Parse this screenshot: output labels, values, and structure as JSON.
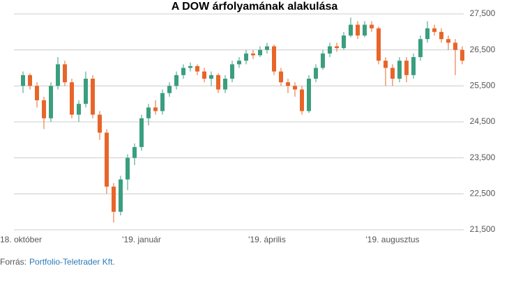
{
  "chart_data": {
    "type": "candlestick",
    "title": "A DOW árfolyamának alakulása",
    "categories": [
      "18. október",
      null,
      null,
      null,
      null,
      null,
      null,
      null,
      null,
      null,
      null,
      null,
      null,
      null,
      null,
      null,
      null,
      "'19. január",
      null,
      null,
      null,
      null,
      null,
      null,
      null,
      null,
      null,
      null,
      null,
      null,
      null,
      null,
      null,
      null,
      null,
      "'19. április",
      null,
      null,
      null,
      null,
      null,
      null,
      null,
      null,
      null,
      null,
      null,
      null,
      null,
      null,
      null,
      null,
      null,
      "'19. augusztus",
      null,
      null,
      null,
      null,
      null,
      null,
      null,
      null,
      null,
      null
    ],
    "open": [
      25500,
      25800,
      25500,
      25100,
      24600,
      25500,
      26100,
      25600,
      24700,
      25000,
      25700,
      24700,
      24200,
      22700,
      22000,
      22900,
      23500,
      23800,
      24600,
      24900,
      24800,
      25300,
      25500,
      25800,
      26000,
      26050,
      25900,
      25700,
      25800,
      25400,
      25700,
      26100,
      26200,
      26400,
      26350,
      26500,
      26600,
      25900,
      25600,
      25500,
      25400,
      24800,
      25700,
      26000,
      26400,
      26600,
      26550,
      26900,
      27200,
      26900,
      27200,
      27100,
      26200,
      26000,
      25700,
      26200,
      25800,
      26300,
      26800,
      27100,
      27000,
      26800,
      26700,
      26500
    ],
    "high": [
      25900,
      25850,
      25600,
      25200,
      25600,
      26300,
      26200,
      25700,
      25100,
      25900,
      25800,
      24800,
      24300,
      22800,
      23000,
      23600,
      23900,
      24700,
      25000,
      25100,
      25400,
      25600,
      25900,
      26100,
      26150,
      26100,
      26000,
      25900,
      25850,
      25800,
      26200,
      26300,
      26500,
      26500,
      26600,
      26700,
      26650,
      26000,
      25700,
      25600,
      25500,
      25800,
      26100,
      26500,
      26700,
      26700,
      27000,
      27400,
      27300,
      27300,
      27300,
      27150,
      26300,
      26100,
      26300,
      26300,
      26400,
      26900,
      27300,
      27200,
      27100,
      26900,
      26800,
      26600
    ],
    "low": [
      25300,
      25400,
      24900,
      24300,
      24500,
      25400,
      25500,
      24600,
      24500,
      24900,
      24600,
      24000,
      22500,
      21700,
      21900,
      22600,
      23300,
      23700,
      24400,
      24700,
      24700,
      25200,
      25400,
      25700,
      25900,
      25800,
      25600,
      25500,
      25300,
      25300,
      25600,
      26000,
      26100,
      26250,
      26300,
      26400,
      25800,
      25500,
      25300,
      25200,
      24700,
      24750,
      25600,
      25950,
      26300,
      26450,
      26500,
      26850,
      26800,
      26850,
      27000,
      26100,
      25500,
      25500,
      25600,
      25600,
      25700,
      26200,
      26700,
      26900,
      26700,
      26500,
      25800,
      26100
    ],
    "close": [
      25800,
      25500,
      25100,
      24600,
      25500,
      26100,
      25600,
      24700,
      25000,
      25700,
      24700,
      24200,
      22700,
      22000,
      22900,
      23500,
      23800,
      24600,
      24900,
      24800,
      25300,
      25500,
      25800,
      26000,
      26050,
      25900,
      25700,
      25800,
      25400,
      25700,
      26100,
      26200,
      26400,
      26350,
      26500,
      26600,
      25900,
      25600,
      25500,
      25400,
      24800,
      25700,
      26000,
      26400,
      26600,
      26550,
      26900,
      27200,
      26900,
      27200,
      27100,
      26200,
      26000,
      25700,
      26200,
      25800,
      26300,
      26800,
      27100,
      27000,
      26800,
      26700,
      26500,
      26200
    ],
    "up_color": "#3a9e7f",
    "down_color": "#e8652a",
    "ylim": [
      21500,
      27500
    ],
    "yticks": [
      {
        "value": 21500,
        "label": "21,500"
      },
      {
        "value": 22500,
        "label": "22,500"
      },
      {
        "value": 23500,
        "label": "23,500"
      },
      {
        "value": 24500,
        "label": "24,500"
      },
      {
        "value": 25500,
        "label": "25,500"
      },
      {
        "value": 26500,
        "label": "26,500"
      },
      {
        "value": 27500,
        "label": "27,500"
      }
    ],
    "grid": true,
    "source_label": "Forrás:",
    "source": "Portfolio-Teletrader Kft."
  }
}
